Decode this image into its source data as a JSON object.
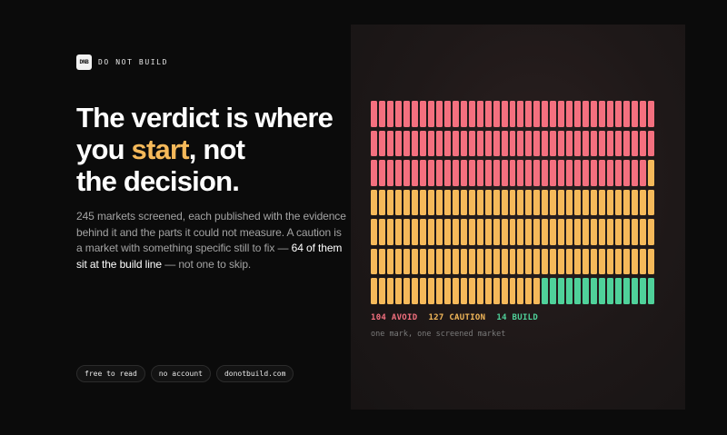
{
  "brand": {
    "logo_mark": "DNB",
    "name": "DO NOT BUILD"
  },
  "headline": {
    "line1": "The verdict is where",
    "line2_pre": "you ",
    "line2_highlight": "start",
    "line2_post": ", not",
    "line3": "the decision."
  },
  "body": {
    "text_pre": "245 markets screened, each published with the evidence behind it and the parts it could not measure. A caution is a market with something specific still to fix — ",
    "text_strong": "64 of them sit at the build line",
    "text_post": " — not one to skip."
  },
  "chips": [
    "free to read",
    "no account",
    "donotbuild.com"
  ],
  "chart_data": {
    "type": "waffle",
    "columns": 35,
    "rows": 7,
    "series": [
      {
        "name": "AVOID",
        "value": 104,
        "color": "#f4707f"
      },
      {
        "name": "CAUTION",
        "value": 127,
        "color": "#f5b95a"
      },
      {
        "name": "BUILD",
        "value": 14,
        "color": "#4fd19a"
      }
    ],
    "legend": [
      {
        "label": "104 AVOID"
      },
      {
        "label": "127 CAUTION"
      },
      {
        "label": "14 BUILD"
      }
    ],
    "caption": "one mark, one screened market"
  },
  "colors": {
    "accent": "#f5b95a",
    "avoid": "#f4707f",
    "caution": "#f5b95a",
    "build": "#4fd19a"
  }
}
